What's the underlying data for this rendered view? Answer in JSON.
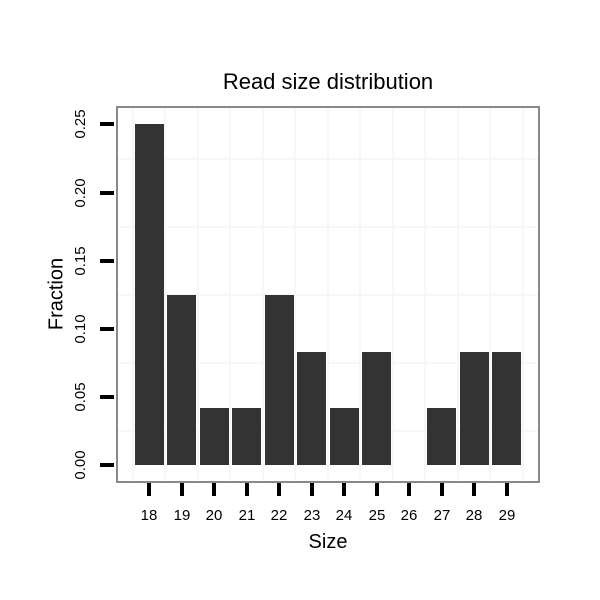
{
  "chart_data": {
    "type": "bar",
    "title": "Read size distribution",
    "xlabel": "Size",
    "ylabel": "Fraction",
    "categories": [
      "18",
      "19",
      "20",
      "21",
      "22",
      "23",
      "24",
      "25",
      "26",
      "27",
      "28",
      "29"
    ],
    "values": [
      0.25,
      0.125,
      0.0417,
      0.0417,
      0.125,
      0.0833,
      0.0417,
      0.0833,
      0,
      0.0417,
      0.0833,
      0.0833
    ],
    "y_tick_labels": [
      "0.00",
      "0.05",
      "0.10",
      "0.15",
      "0.20",
      "0.25"
    ],
    "y_tick_values": [
      0,
      0.05,
      0.1,
      0.15,
      0.2,
      0.25
    ],
    "ylim": [
      0,
      0.25
    ],
    "minor_h_gridline_values": [
      0.025,
      0.075,
      0.125,
      0.175,
      0.225
    ],
    "grid": "faint minor gridlines; vertical lines at category boundaries",
    "legend_position": "none",
    "colors": {
      "bar": "#333333",
      "panel_border": "#898989",
      "grid": "#f7f7f7",
      "tick": "#000000",
      "text": "#000000",
      "background": "#ffffff"
    }
  }
}
